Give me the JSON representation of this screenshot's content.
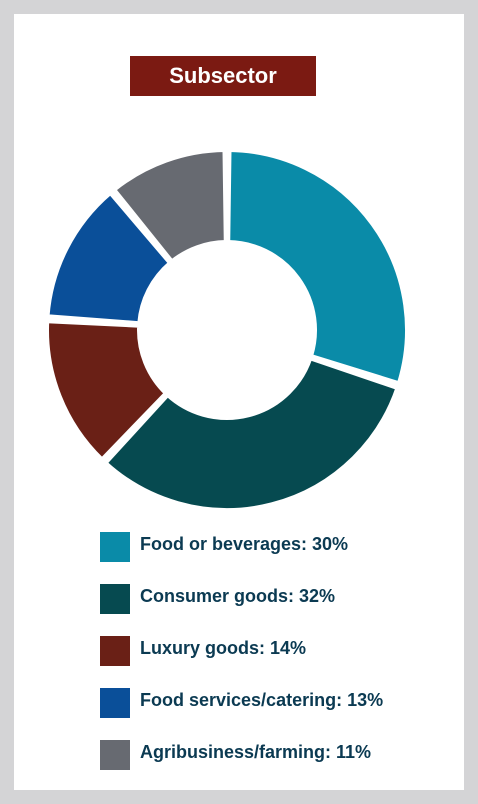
{
  "chart_data": {
    "type": "pie",
    "title": "Subsector",
    "categories": [
      "Food or beverages",
      "Consumer goods",
      "Luxury goods",
      "Food services/catering",
      "Agribusiness/farming"
    ],
    "values": [
      30,
      32,
      14,
      13,
      11
    ],
    "colors": [
      "#0a8ba8",
      "#064a50",
      "#6a2016",
      "#0a4f99",
      "#676a71"
    ],
    "legend": [
      {
        "label": "Food or beverages: 30%",
        "color": "#0a8ba8"
      },
      {
        "label": "Consumer goods: 32%",
        "color": "#064a50"
      },
      {
        "label": "Luxury goods: 14%",
        "color": "#6a2016"
      },
      {
        "label": "Food services/catering: 13%",
        "color": "#0a4f99"
      },
      {
        "label": "Agribusiness/farming: 11%",
        "color": "#676a71"
      }
    ],
    "legend_position": "bottom",
    "donut": true
  }
}
